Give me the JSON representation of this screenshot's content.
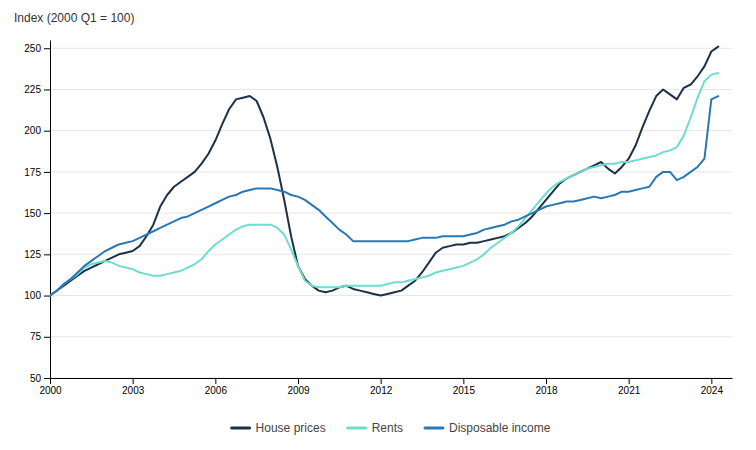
{
  "chart_data": {
    "type": "line",
    "y_label": "Index (2000 Q1 = 100)",
    "xlim": [
      2000.0,
      2024.75
    ],
    "xticks": [
      2000,
      2003,
      2006,
      2009,
      2012,
      2015,
      2018,
      2021,
      2024
    ],
    "ylim": [
      50,
      255
    ],
    "yticks": [
      50,
      75,
      100,
      125,
      150,
      175,
      200,
      225,
      250
    ],
    "grid": true,
    "legend": "bottom",
    "x": [
      2000.0,
      2000.25,
      2000.5,
      2000.75,
      2001.0,
      2001.25,
      2001.5,
      2001.75,
      2002.0,
      2002.25,
      2002.5,
      2002.75,
      2003.0,
      2003.25,
      2003.5,
      2003.75,
      2004.0,
      2004.25,
      2004.5,
      2004.75,
      2005.0,
      2005.25,
      2005.5,
      2005.75,
      2006.0,
      2006.25,
      2006.5,
      2006.75,
      2007.0,
      2007.25,
      2007.5,
      2007.75,
      2008.0,
      2008.25,
      2008.5,
      2008.75,
      2009.0,
      2009.25,
      2009.5,
      2009.75,
      2010.0,
      2010.25,
      2010.5,
      2010.75,
      2011.0,
      2011.25,
      2011.5,
      2011.75,
      2012.0,
      2012.25,
      2012.5,
      2012.75,
      2013.0,
      2013.25,
      2013.5,
      2013.75,
      2014.0,
      2014.25,
      2014.5,
      2014.75,
      2015.0,
      2015.25,
      2015.5,
      2015.75,
      2016.0,
      2016.25,
      2016.5,
      2016.75,
      2017.0,
      2017.25,
      2017.5,
      2017.75,
      2018.0,
      2018.25,
      2018.5,
      2018.75,
      2019.0,
      2019.25,
      2019.5,
      2019.75,
      2020.0,
      2020.25,
      2020.5,
      2020.75,
      2021.0,
      2021.25,
      2021.5,
      2021.75,
      2022.0,
      2022.25,
      2022.5,
      2022.75,
      2023.0,
      2023.25,
      2023.5,
      2023.75,
      2024.0,
      2024.25
    ],
    "series": [
      {
        "name": "House prices",
        "color": "#1c3149",
        "values": [
          100,
          103,
          106,
          109,
          112,
          115,
          117,
          119,
          121,
          123,
          125,
          126,
          127,
          130,
          136,
          143,
          154,
          161,
          166,
          169,
          172,
          175,
          180,
          186,
          194,
          204,
          213,
          219,
          220,
          221,
          218,
          208,
          195,
          178,
          158,
          136,
          118,
          110,
          106,
          103,
          102,
          103,
          105,
          106,
          104,
          103,
          102,
          101,
          100,
          101,
          102,
          103,
          106,
          109,
          114,
          120,
          126,
          129,
          130,
          131,
          131,
          132,
          132,
          133,
          134,
          135,
          136,
          138,
          141,
          144,
          148,
          153,
          158,
          163,
          168,
          171,
          173,
          175,
          177,
          179,
          181,
          177,
          174,
          178,
          183,
          191,
          202,
          212,
          221,
          225,
          222,
          219,
          226,
          228,
          233,
          239,
          248,
          251
        ]
      },
      {
        "name": "Rents",
        "color": "#6eddd0",
        "values": [
          100,
          103,
          107,
          110,
          113,
          117,
          119,
          120,
          121,
          120,
          118,
          117,
          116,
          114,
          113,
          112,
          112,
          113,
          114,
          115,
          117,
          119,
          122,
          127,
          131,
          134,
          137,
          140,
          142,
          143,
          143,
          143,
          143,
          141,
          137,
          128,
          118,
          109,
          106,
          105,
          105,
          105,
          105,
          106,
          106,
          106,
          106,
          106,
          106,
          107,
          108,
          108,
          109,
          110,
          111,
          112,
          114,
          115,
          116,
          117,
          118,
          120,
          122,
          125,
          129,
          132,
          135,
          138,
          142,
          147,
          152,
          157,
          162,
          166,
          169,
          171,
          173,
          175,
          177,
          178,
          179,
          180,
          180,
          181,
          181,
          182,
          183,
          184,
          185,
          187,
          188,
          190,
          197,
          208,
          220,
          230,
          234,
          235
        ]
      },
      {
        "name": "Disposable income",
        "color": "#2878b5",
        "values": [
          100,
          103,
          107,
          110,
          114,
          118,
          121,
          124,
          127,
          129,
          131,
          132,
          133,
          135,
          137,
          139,
          141,
          143,
          145,
          147,
          148,
          150,
          152,
          154,
          156,
          158,
          160,
          161,
          163,
          164,
          165,
          165,
          165,
          164,
          163,
          161,
          160,
          158,
          155,
          152,
          148,
          144,
          140,
          137,
          133,
          133,
          133,
          133,
          133,
          133,
          133,
          133,
          133,
          134,
          135,
          135,
          135,
          136,
          136,
          136,
          136,
          137,
          138,
          140,
          141,
          142,
          143,
          145,
          146,
          148,
          150,
          152,
          154,
          155,
          156,
          157,
          157,
          158,
          159,
          160,
          159,
          160,
          161,
          163,
          163,
          164,
          165,
          166,
          172,
          175,
          175,
          170,
          172,
          175,
          178,
          183,
          219,
          221
        ]
      }
    ]
  }
}
